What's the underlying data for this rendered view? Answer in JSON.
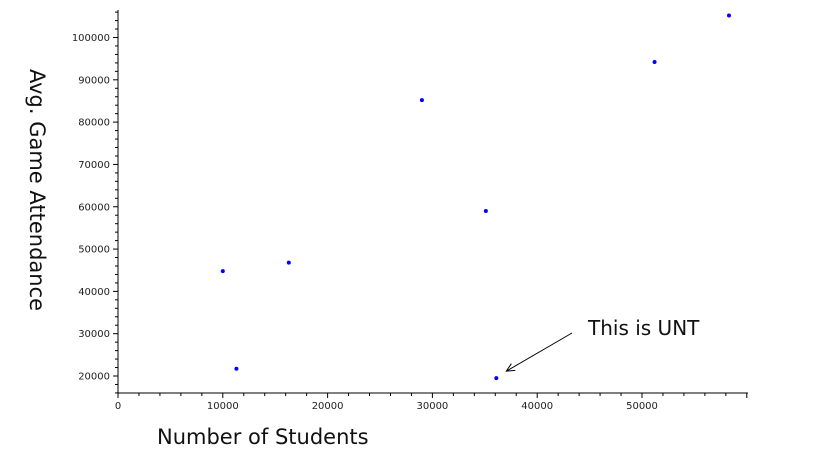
{
  "chart_data": {
    "type": "scatter",
    "title": "",
    "xlabel": "Number of Students",
    "ylabel": "Avg. Game Attendance",
    "xlim": [
      0,
      60000
    ],
    "ylim": [
      15000,
      107000
    ],
    "x_ticks": [
      0,
      10000,
      20000,
      30000,
      40000,
      50000
    ],
    "y_ticks": [
      20000,
      30000,
      40000,
      50000,
      60000,
      70000,
      80000,
      90000,
      100000
    ],
    "grid": false,
    "point_color": "#0000ff",
    "points": [
      {
        "x": 10000,
        "y": 44800
      },
      {
        "x": 11300,
        "y": 21700
      },
      {
        "x": 16300,
        "y": 46800
      },
      {
        "x": 29000,
        "y": 85200
      },
      {
        "x": 35100,
        "y": 59000
      },
      {
        "x": 36100,
        "y": 19500
      },
      {
        "x": 51200,
        "y": 94200
      },
      {
        "x": 58300,
        "y": 105200
      }
    ],
    "annotation": {
      "text": "This is UNT",
      "target_x": 36100,
      "target_y": 19500
    }
  }
}
